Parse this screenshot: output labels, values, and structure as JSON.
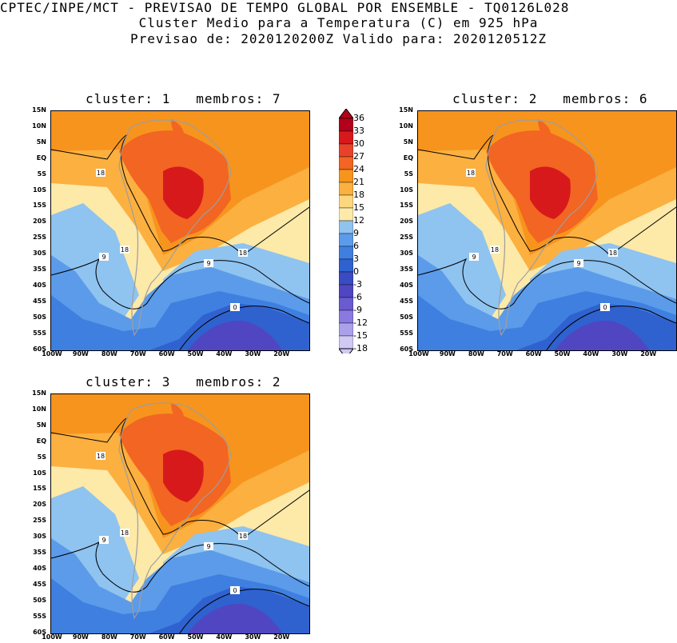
{
  "header": {
    "line1": "CPTEC/INPE/MCT - PREVISAO DE TEMPO GLOBAL POR ENSEMBLE - TQ0126L028",
    "line2": "Cluster Medio para a Temperatura (C) em 925 hPa",
    "line3": "Previsao de: 2020120200Z   Valido para: 2020120512Z"
  },
  "panels": [
    {
      "title": "cluster: 1   membros: 7",
      "contour_labels": [
        "18",
        "18",
        "18",
        "9",
        "9",
        "0"
      ]
    },
    {
      "title": "cluster: 2   membros: 6",
      "contour_labels": [
        "18",
        "18",
        "18",
        "9",
        "9",
        "0"
      ]
    },
    {
      "title": "cluster: 3   membros: 2",
      "contour_labels": [
        "18",
        "18",
        "18",
        "9",
        "9",
        "0"
      ]
    }
  ],
  "axes": {
    "lat_ticks": [
      "15N",
      "10N",
      "5N",
      "EQ",
      "5S",
      "10S",
      "15S",
      "20S",
      "25S",
      "30S",
      "35S",
      "40S",
      "45S",
      "50S",
      "55S",
      "60S"
    ],
    "lon_ticks": [
      "100W",
      "90W",
      "80W",
      "70W",
      "60W",
      "50W",
      "40W",
      "30W",
      "20W"
    ]
  },
  "colorbar": {
    "labels": [
      "36",
      "33",
      "30",
      "27",
      "24",
      "21",
      "18",
      "15",
      "12",
      "9",
      "6",
      "3",
      "0",
      "-3",
      "-6",
      "-9",
      "-12",
      "-15",
      "-18"
    ],
    "colors": [
      "#b3001b",
      "#d7191c",
      "#e8432a",
      "#f26522",
      "#f7941d",
      "#fbb040",
      "#fcd77f",
      "#fde9a8",
      "#8fc3f0",
      "#5b9bea",
      "#3f7fe0",
      "#2f62cf",
      "#3a4cc4",
      "#5046c2",
      "#6b5bd0",
      "#8a7ae0",
      "#aba0ea",
      "#d0c8f5"
    ],
    "palette": {
      "hot": "#d7191c",
      "warm_dark": "#f26522",
      "warm": "#f7941d",
      "orange": "#fbb040",
      "yellow": "#fde9a8",
      "lightblue": "#8fc3f0",
      "blue": "#5b9bea",
      "blue2": "#3f7fe0",
      "navy": "#2f62cf",
      "purple": "#5046c2",
      "land": "#9e9e9e"
    }
  }
}
